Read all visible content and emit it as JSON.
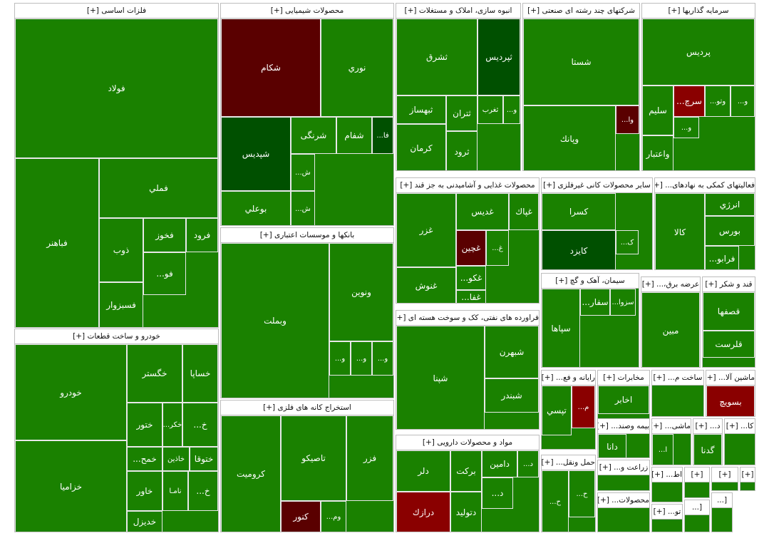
{
  "chart_data": {
    "type": "treemap",
    "colors": {
      "gain": "#1a8100",
      "strong_gain": "#005000",
      "mid_gain": "#0f6a00",
      "loss": "#8a0000",
      "strong_loss": "#5a0000"
    },
    "sectors": [
      {
        "title": "فلزات اساسی [+]",
        "tiles": [
          {
            "label": "فولاد",
            "c": "g"
          },
          {
            "label": "فملي",
            "c": "g"
          },
          {
            "label": "فباهنر",
            "c": "g"
          },
          {
            "label": "ذوب",
            "c": "g"
          },
          {
            "label": "فخوز",
            "c": "g"
          },
          {
            "label": "فرود",
            "c": "g"
          },
          {
            "label": "فسبزوار",
            "c": "g"
          },
          {
            "label": "فو...",
            "c": "g"
          }
        ]
      },
      {
        "title": "خودرو و ساخت قطعات [+]",
        "tiles": [
          {
            "label": "خودرو",
            "c": "g"
          },
          {
            "label": "خزامیا",
            "c": "g"
          },
          {
            "label": "خگستر",
            "c": "g"
          },
          {
            "label": "خساپا",
            "c": "g"
          },
          {
            "label": "ختور",
            "c": "g"
          },
          {
            "label": "خكر...",
            "c": "g"
          },
          {
            "label": "خ...",
            "c": "g"
          },
          {
            "label": "خمح...",
            "c": "g"
          },
          {
            "label": "خاذین",
            "c": "g"
          },
          {
            "label": "ختوقا",
            "c": "g"
          },
          {
            "label": "خاور",
            "c": "g"
          },
          {
            "label": "نامـا",
            "c": "g"
          },
          {
            "label": "خدیزل",
            "c": "g"
          },
          {
            "label": "خ...",
            "c": "g"
          }
        ]
      },
      {
        "title": "محصولات شیمیایی [+]",
        "tiles": [
          {
            "label": "شکام",
            "c": "dr"
          },
          {
            "label": "نوري",
            "c": "g"
          },
          {
            "label": "شپدیس",
            "c": "dg"
          },
          {
            "label": "شرنگی",
            "c": "g"
          },
          {
            "label": "شفام",
            "c": "g"
          },
          {
            "label": "فا...",
            "c": "dg"
          },
          {
            "label": "بوعلي",
            "c": "g"
          },
          {
            "label": "ش...",
            "c": "g"
          },
          {
            "label": "ش...",
            "c": "g"
          }
        ]
      },
      {
        "title": "بانکها و موسسات اعتباری [+]",
        "tiles": [
          {
            "label": "وبملت",
            "c": "g"
          },
          {
            "label": "ونوین",
            "c": "g"
          },
          {
            "label": "و...",
            "c": "g"
          },
          {
            "label": "و...",
            "c": "g"
          },
          {
            "label": "و...",
            "c": "g"
          }
        ]
      },
      {
        "title": "استخراج کانه های فلزی [+]",
        "tiles": [
          {
            "label": "کرومیت",
            "c": "g"
          },
          {
            "label": "تاصیکو",
            "c": "g"
          },
          {
            "label": "فزر",
            "c": "g"
          },
          {
            "label": "کنور",
            "c": "dr"
          },
          {
            "label": "وم...",
            "c": "g"
          }
        ]
      },
      {
        "title": "انبوه سازی، املاک و مستغلات [+]",
        "tiles": [
          {
            "label": "ثشرق",
            "c": "g"
          },
          {
            "label": "ثپردیس",
            "c": "dg"
          },
          {
            "label": "ثبهساز",
            "c": "g"
          },
          {
            "label": "ثتران",
            "c": "g"
          },
          {
            "label": "ثغرب",
            "c": "g"
          },
          {
            "label": "و...",
            "c": "g"
          },
          {
            "label": "ثرود",
            "c": "g"
          },
          {
            "label": "کرمان",
            "c": "g"
          }
        ]
      },
      {
        "title": "شرکتهای چند رشته ای صنعتی [+]",
        "tiles": [
          {
            "label": "شستا",
            "c": "g"
          },
          {
            "label": "وپانك",
            "c": "g"
          },
          {
            "label": "وا...",
            "c": "dr"
          }
        ]
      },
      {
        "title": "سرمایه گذاریها [+]",
        "tiles": [
          {
            "label": "پردیس",
            "c": "g"
          },
          {
            "label": "سلیم",
            "c": "g"
          },
          {
            "label": "سرچ...",
            "c": "r"
          },
          {
            "label": "وتو...",
            "c": "g"
          },
          {
            "label": "و...",
            "c": "g"
          },
          {
            "label": "و...",
            "c": "g"
          },
          {
            "label": "واعتبار",
            "c": "g"
          }
        ]
      },
      {
        "title": "محصولات غذایی و آشامیدنی به جز قند [+]",
        "tiles": [
          {
            "label": "غزر",
            "c": "g"
          },
          {
            "label": "غدیس",
            "c": "g"
          },
          {
            "label": "غپاك",
            "c": "g"
          },
          {
            "label": "غچین",
            "c": "dr"
          },
          {
            "label": "غ...",
            "c": "g"
          },
          {
            "label": "غنوش",
            "c": "g"
          },
          {
            "label": "غکو...",
            "c": "g"
          },
          {
            "label": "غفا...",
            "c": "g"
          }
        ]
      },
      {
        "title": "سایر محصولات کانی غیرفلزی [+]",
        "tiles": [
          {
            "label": "کسرا",
            "c": "g"
          },
          {
            "label": "کایزد",
            "c": "dg"
          },
          {
            "label": "ک...",
            "c": "g"
          }
        ]
      },
      {
        "title": "فعالیتهای کمکی به نهادهای... [+]",
        "tiles": [
          {
            "label": "کالا",
            "c": "g"
          },
          {
            "label": "انرژي",
            "c": "g"
          },
          {
            "label": "بورس",
            "c": "g"
          },
          {
            "label": "فرابو...",
            "c": "g"
          }
        ]
      },
      {
        "title": "سیمان، آهک و گچ [+]",
        "tiles": [
          {
            "label": "سپاها",
            "c": "g"
          },
          {
            "label": "سفار...",
            "c": "g"
          },
          {
            "label": "سزوا...",
            "c": "g"
          }
        ]
      },
      {
        "title": "عرضه برق،... [+]",
        "tiles": [
          {
            "label": "مبین",
            "c": "g"
          }
        ]
      },
      {
        "title": "قند و شکر [+]",
        "tiles": [
          {
            "label": "قصفها",
            "c": "g"
          },
          {
            "label": "قلرست",
            "c": "g"
          }
        ]
      },
      {
        "title": "فراورده های نفتی، کک و سوخت هسته ای [+]",
        "tiles": [
          {
            "label": "شپنا",
            "c": "g"
          },
          {
            "label": "شبهرن",
            "c": "g"
          },
          {
            "label": "شبندر",
            "c": "g"
          }
        ]
      },
      {
        "title": "مواد و محصولات دارویی [+]",
        "tiles": [
          {
            "label": "دلر",
            "c": "g"
          },
          {
            "label": "برکت",
            "c": "g"
          },
          {
            "label": "دامین",
            "c": "g"
          },
          {
            "label": "د...",
            "c": "g"
          },
          {
            "label": "درازك",
            "c": "r"
          },
          {
            "label": "دتولید",
            "c": "g"
          },
          {
            "label": "د...",
            "c": "g"
          }
        ]
      },
      {
        "title": "رایانه و فع... [+]",
        "tiles": [
          {
            "label": "تپسي",
            "c": "g"
          },
          {
            "label": "م...",
            "c": "r"
          }
        ]
      },
      {
        "title": "مخابرات [+]",
        "tiles": [
          {
            "label": "اخابر",
            "c": "g"
          }
        ]
      },
      {
        "title": "ساخت م... [+]",
        "tiles": []
      },
      {
        "title": "ماشین آلا... [+]",
        "tiles": [
          {
            "label": "بسویچ",
            "c": "r"
          }
        ]
      },
      {
        "title": "حمل ونقل... [+]",
        "tiles": [
          {
            "label": "ح...",
            "c": "g"
          },
          {
            "label": "ح...",
            "c": "g"
          }
        ]
      },
      {
        "title": "بیمه وصند... [+]",
        "tiles": [
          {
            "label": "دانا",
            "c": "g"
          }
        ]
      },
      {
        "title": "ماشی... [+]",
        "tiles": [
          {
            "label": "ا...",
            "c": "g"
          }
        ]
      },
      {
        "title": "د... [+]",
        "tiles": [
          {
            "label": "گدنا",
            "c": "g"
          }
        ]
      },
      {
        "title": "کا... [+]",
        "tiles": []
      },
      {
        "title": "زراعت و... [+]",
        "tiles": []
      },
      {
        "title": "محصولات... [+]",
        "tiles": []
      },
      {
        "title": "اط... [+]",
        "tiles": []
      },
      {
        "title": "تو... [+]",
        "tiles": []
      },
      {
        "title": "[+]",
        "tiles": []
      },
      {
        "title": "[+]",
        "tiles": []
      },
      {
        "title": "[+]",
        "tiles": []
      },
      {
        "title": "[...",
        "tiles": []
      },
      {
        "title": "[...",
        "tiles": []
      }
    ]
  }
}
